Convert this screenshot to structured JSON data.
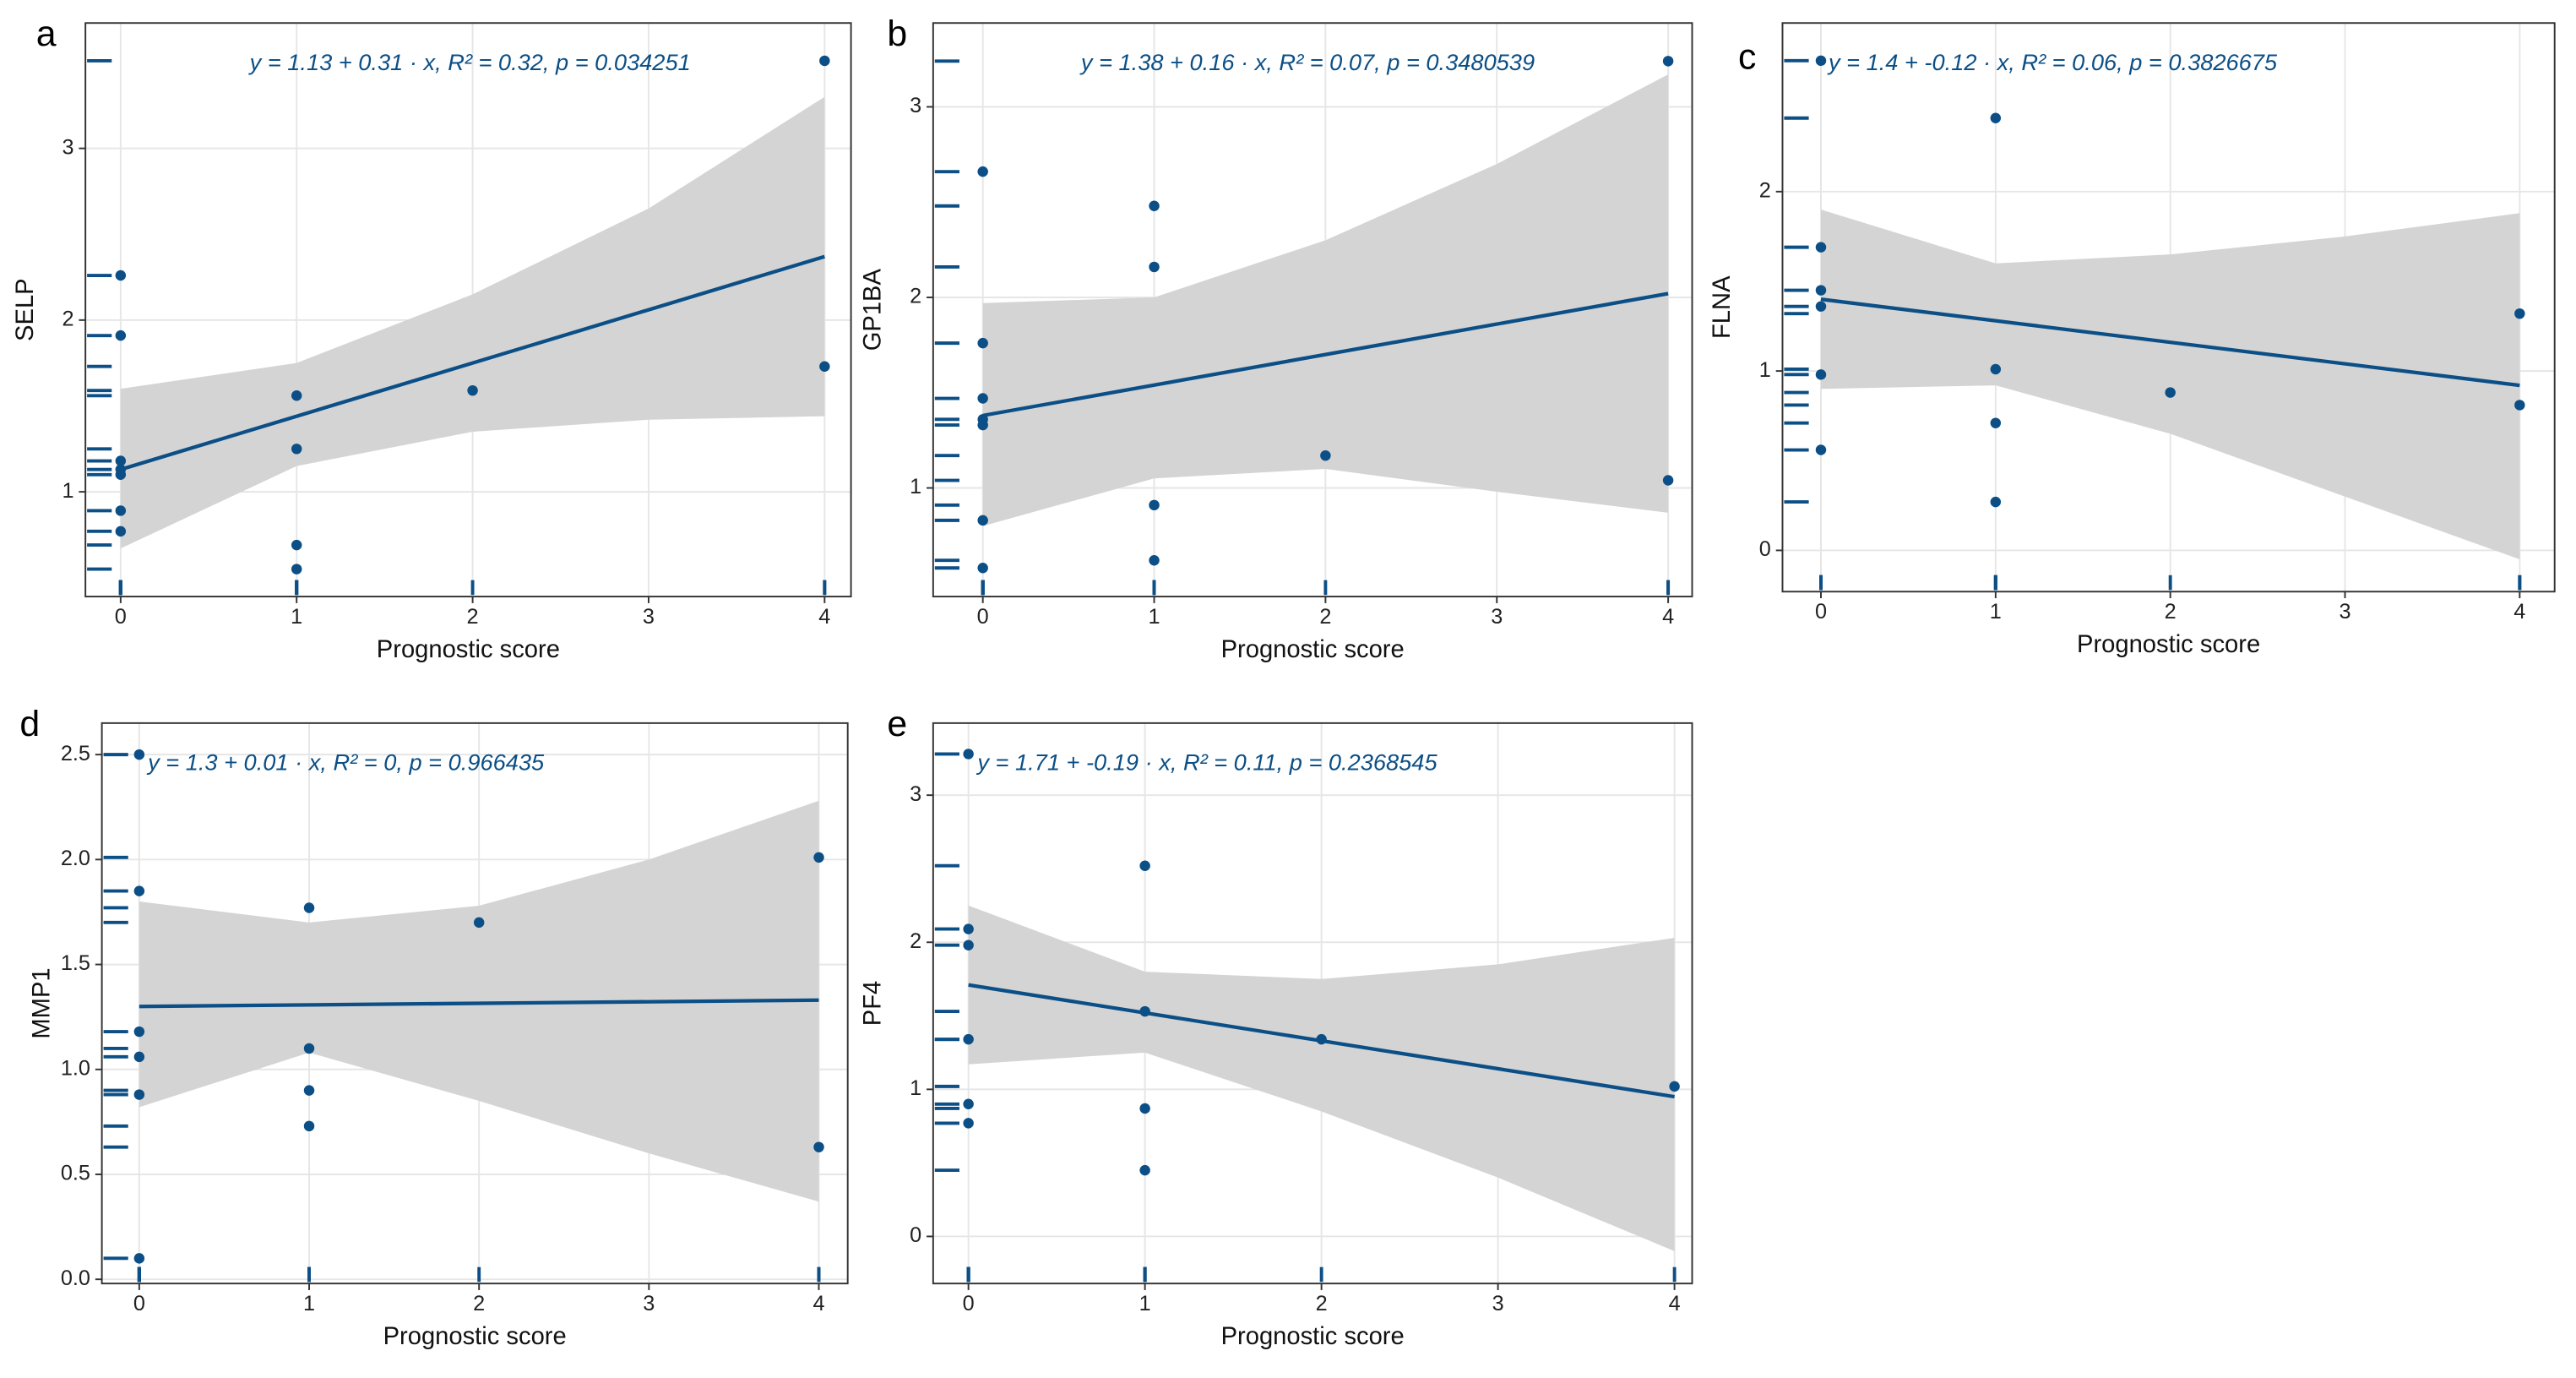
{
  "chart_data": [
    {
      "type": "scatter",
      "panel": "a",
      "annotation": "y = 1.13 + 0.31 · x,  R² = 0.32,  p = 0.034251",
      "xlabel": "Prognostic score",
      "ylabel": "SELP",
      "x": [
        0,
        0,
        0,
        0,
        0,
        0,
        0,
        1,
        1,
        1,
        1,
        2,
        4,
        4
      ],
      "y": [
        2.26,
        1.91,
        1.18,
        1.13,
        1.1,
        0.89,
        0.77,
        1.56,
        1.25,
        0.69,
        0.55,
        1.59,
        3.51,
        1.73
      ],
      "fit_x": [
        0,
        4
      ],
      "fit": [
        1.13,
        2.37
      ],
      "band_x": [
        0,
        1,
        2,
        3,
        4
      ],
      "band_lower": [
        0.67,
        1.15,
        1.35,
        1.42,
        1.44
      ],
      "band_upper": [
        1.6,
        1.75,
        2.15,
        2.65,
        3.3
      ],
      "xlim": [
        -0.2,
        4.15
      ],
      "ylim": [
        0.39,
        3.73
      ],
      "xticks": [
        0,
        1,
        2,
        3,
        4
      ],
      "yticks": [
        1,
        2,
        3
      ],
      "color": "#0b4f86",
      "band_color": "#d4d4d4",
      "grid": true
    },
    {
      "type": "scatter",
      "panel": "b",
      "annotation": "y = 1.38 + 0.16 · x,  R² = 0.07,  p = 0.3480539",
      "xlabel": "Prognostic score",
      "ylabel": "GP1BA",
      "x": [
        0,
        0,
        0,
        0,
        0,
        0,
        0,
        1,
        1,
        1,
        1,
        2,
        4,
        4
      ],
      "y": [
        2.66,
        1.76,
        1.47,
        1.36,
        1.33,
        0.83,
        0.58,
        2.48,
        2.16,
        0.91,
        0.62,
        1.17,
        3.24,
        1.04
      ],
      "fit_x": [
        0,
        4
      ],
      "fit": [
        1.38,
        2.02
      ],
      "band_x": [
        0,
        1,
        2,
        3,
        4
      ],
      "band_lower": [
        0.8,
        1.05,
        1.1,
        0.98,
        0.87
      ],
      "band_upper": [
        1.97,
        2.0,
        2.3,
        2.7,
        3.17
      ],
      "xlim": [
        -0.29,
        4.14
      ],
      "ylim": [
        0.43,
        3.44
      ],
      "xticks": [
        0,
        1,
        2,
        3,
        4
      ],
      "yticks": [
        1,
        2,
        3
      ],
      "color": "#0b4f86",
      "band_color": "#d4d4d4",
      "grid": true
    },
    {
      "type": "scatter",
      "panel": "c",
      "annotation": "y = 1.4 + -0.12 · x,  R² = 0.06,  p = 0.3826675",
      "xlabel": "Prognostic score",
      "ylabel": "FLNA",
      "x": [
        0,
        0,
        0,
        0,
        0,
        0,
        1,
        1,
        1,
        1,
        2,
        4,
        4
      ],
      "y": [
        2.73,
        1.69,
        1.45,
        1.36,
        0.98,
        0.56,
        2.41,
        1.01,
        0.71,
        0.27,
        0.88,
        1.32,
        0.81
      ],
      "fit_x": [
        0,
        4
      ],
      "fit": [
        1.4,
        0.92
      ],
      "band_x": [
        0,
        1,
        2,
        3,
        4
      ],
      "band_lower": [
        0.9,
        0.92,
        0.65,
        0.3,
        -0.05
      ],
      "band_upper": [
        1.9,
        1.6,
        1.65,
        1.75,
        1.88
      ],
      "xlim": [
        -0.22,
        4.2
      ],
      "ylim": [
        -0.23,
        2.94
      ],
      "xticks": [
        0,
        1,
        2,
        3,
        4
      ],
      "yticks": [
        0,
        1,
        2
      ],
      "color": "#0b4f86",
      "band_color": "#d4d4d4",
      "grid": true
    },
    {
      "type": "scatter",
      "panel": "d",
      "annotation": "y = 1.3 + 0.01 · x,  R² = 0,  p = 0.966435",
      "xlabel": "Prognostic score",
      "ylabel": "MMP1",
      "x": [
        0,
        0,
        0,
        0,
        0,
        0,
        1,
        1,
        1,
        1,
        2,
        4,
        4
      ],
      "y": [
        2.5,
        1.85,
        1.18,
        1.06,
        0.88,
        0.1,
        1.77,
        1.1,
        0.9,
        0.73,
        1.7,
        2.01,
        0.63
      ],
      "fit_x": [
        0,
        4
      ],
      "fit": [
        1.3,
        1.33
      ],
      "band_x": [
        0,
        1,
        2,
        3,
        4
      ],
      "band_lower": [
        0.82,
        1.08,
        0.85,
        0.6,
        0.37
      ],
      "band_upper": [
        1.8,
        1.7,
        1.78,
        2.0,
        2.28
      ],
      "xlim": [
        -0.22,
        4.17
      ],
      "ylim": [
        -0.02,
        2.65
      ],
      "xticks": [
        0,
        1,
        2,
        3,
        4
      ],
      "yticks": [
        {
          "value": 0,
          "label": "0.0"
        },
        {
          "value": 0.5,
          "label": "0.5"
        },
        {
          "value": 1,
          "label": "1.0"
        },
        {
          "value": 1.5,
          "label": "1.5"
        },
        {
          "value": 2,
          "label": "2.0"
        },
        {
          "value": 2.5,
          "label": "2.5"
        }
      ],
      "color": "#0b4f86",
      "band_color": "#d4d4d4",
      "grid": true
    },
    {
      "type": "scatter",
      "panel": "e",
      "annotation": "y = 1.71 + -0.19 · x,  R² = 0.11,  p = 0.2368545",
      "xlabel": "Prognostic score",
      "ylabel": "PF4",
      "x": [
        0,
        0,
        0,
        0,
        0,
        0,
        1,
        1,
        1,
        1,
        2,
        4
      ],
      "y": [
        3.28,
        2.09,
        1.98,
        1.34,
        0.9,
        0.77,
        2.52,
        1.53,
        0.87,
        0.45,
        1.34,
        1.02
      ],
      "fit_x": [
        0,
        4
      ],
      "fit": [
        1.71,
        0.95
      ],
      "band_x": [
        0,
        1,
        2,
        3,
        4
      ],
      "band_lower": [
        1.17,
        1.25,
        0.85,
        0.4,
        -0.1
      ],
      "band_upper": [
        2.25,
        1.8,
        1.75,
        1.85,
        2.03
      ],
      "xlim": [
        -0.2,
        4.1
      ],
      "ylim": [
        -0.32,
        3.49
      ],
      "xticks": [
        0,
        1,
        2,
        3,
        4
      ],
      "yticks": [
        0,
        1,
        2,
        3
      ],
      "color": "#0b4f86",
      "band_color": "#d4d4d4",
      "grid": true
    }
  ]
}
